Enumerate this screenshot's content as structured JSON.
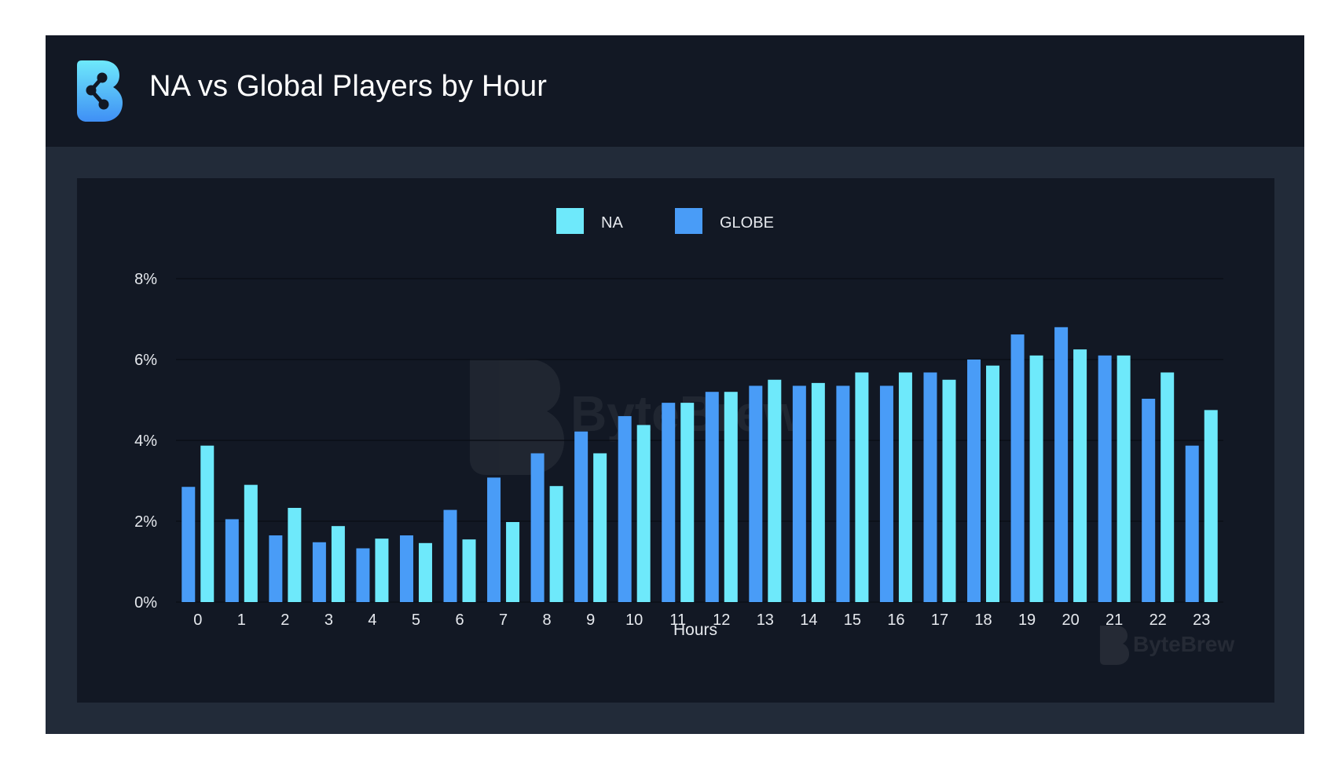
{
  "header": {
    "title": "NA vs Global Players by Hour",
    "logo_icon": "bytebrew-logo-icon"
  },
  "watermark": {
    "text": "ByteBrew"
  },
  "colors": {
    "na": "#6ee9fb",
    "globe": "#499cf7",
    "background": "#121824",
    "card": "#222b39"
  },
  "chart_data": {
    "type": "bar",
    "title": "NA vs Global Players by Hour",
    "xlabel": "Hours",
    "ylabel": "",
    "categories": [
      "0",
      "1",
      "2",
      "3",
      "4",
      "5",
      "6",
      "7",
      "8",
      "9",
      "10",
      "11",
      "12",
      "13",
      "14",
      "15",
      "16",
      "17",
      "18",
      "19",
      "20",
      "21",
      "22",
      "23"
    ],
    "series": [
      {
        "name": "GLOBE",
        "values": [
          2.85,
          2.05,
          1.65,
          1.48,
          1.33,
          1.65,
          2.28,
          3.08,
          3.68,
          4.22,
          4.6,
          4.93,
          5.2,
          5.35,
          5.35,
          5.35,
          5.35,
          5.68,
          6.0,
          6.62,
          6.8,
          6.1,
          5.03,
          3.87
        ]
      },
      {
        "name": "NA",
        "values": [
          3.87,
          2.9,
          2.33,
          1.88,
          1.57,
          1.46,
          1.55,
          1.98,
          2.87,
          3.68,
          4.38,
          4.93,
          5.2,
          5.5,
          5.42,
          5.68,
          5.68,
          5.5,
          5.85,
          6.1,
          6.25,
          6.1,
          5.68,
          4.75
        ]
      }
    ],
    "yticks": [
      "0%",
      "2%",
      "4%",
      "6%",
      "8%"
    ],
    "ylim": [
      0,
      8
    ],
    "y_unit": "%",
    "legend": {
      "placement": "top-center",
      "entries": [
        "NA",
        "GLOBE"
      ]
    },
    "grid": true
  }
}
